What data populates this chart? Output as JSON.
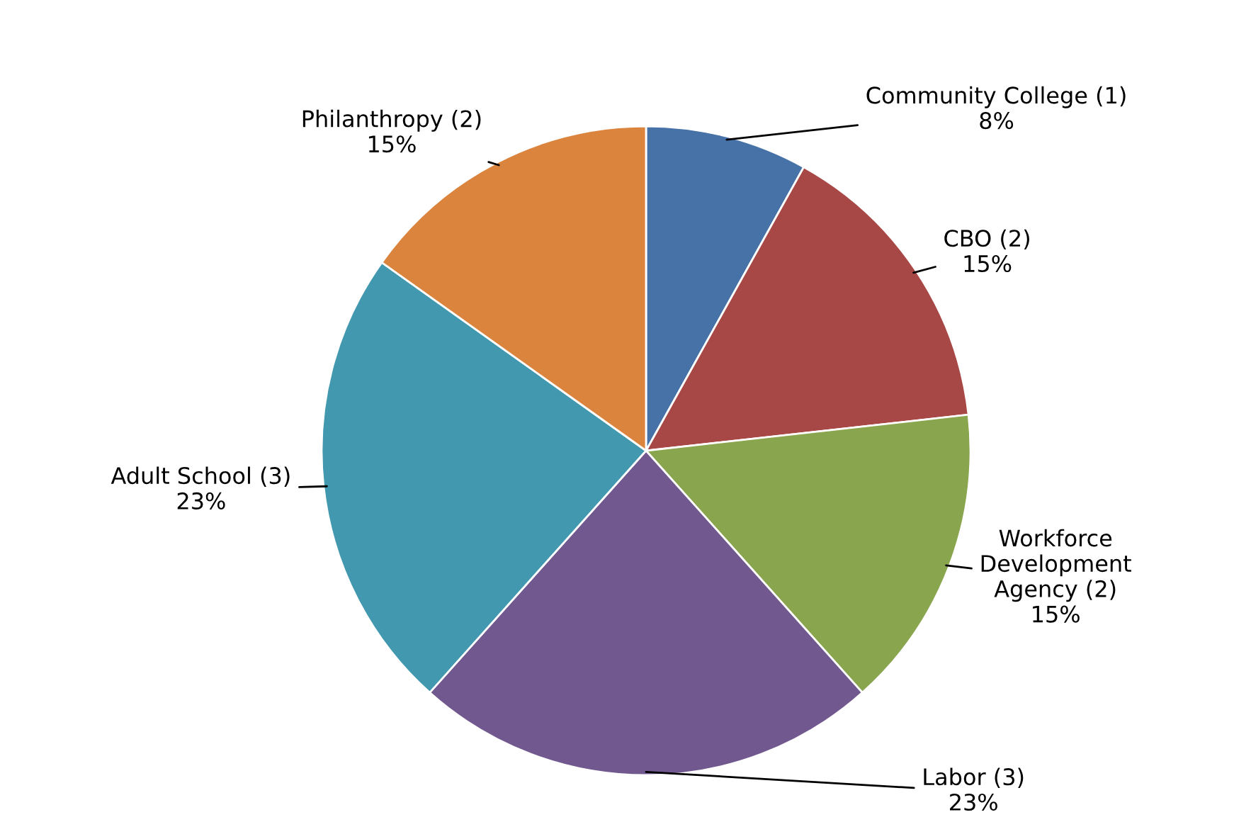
{
  "chart_data": {
    "type": "pie",
    "categories": [
      "Community College (1)",
      "CBO (2)",
      "Workforce Development Agency (2)",
      "Labor (3)",
      "Adult School (3)",
      "Philanthropy (2)"
    ],
    "values": [
      8,
      15,
      15,
      23,
      23,
      15
    ],
    "value_labels": [
      "8%",
      "15%",
      "15%",
      "23%",
      "23%",
      "15%"
    ],
    "colors": [
      "#4672a8",
      "#a84846",
      "#89a54e",
      "#71588f",
      "#4198af",
      "#db843d"
    ],
    "legend": false
  }
}
